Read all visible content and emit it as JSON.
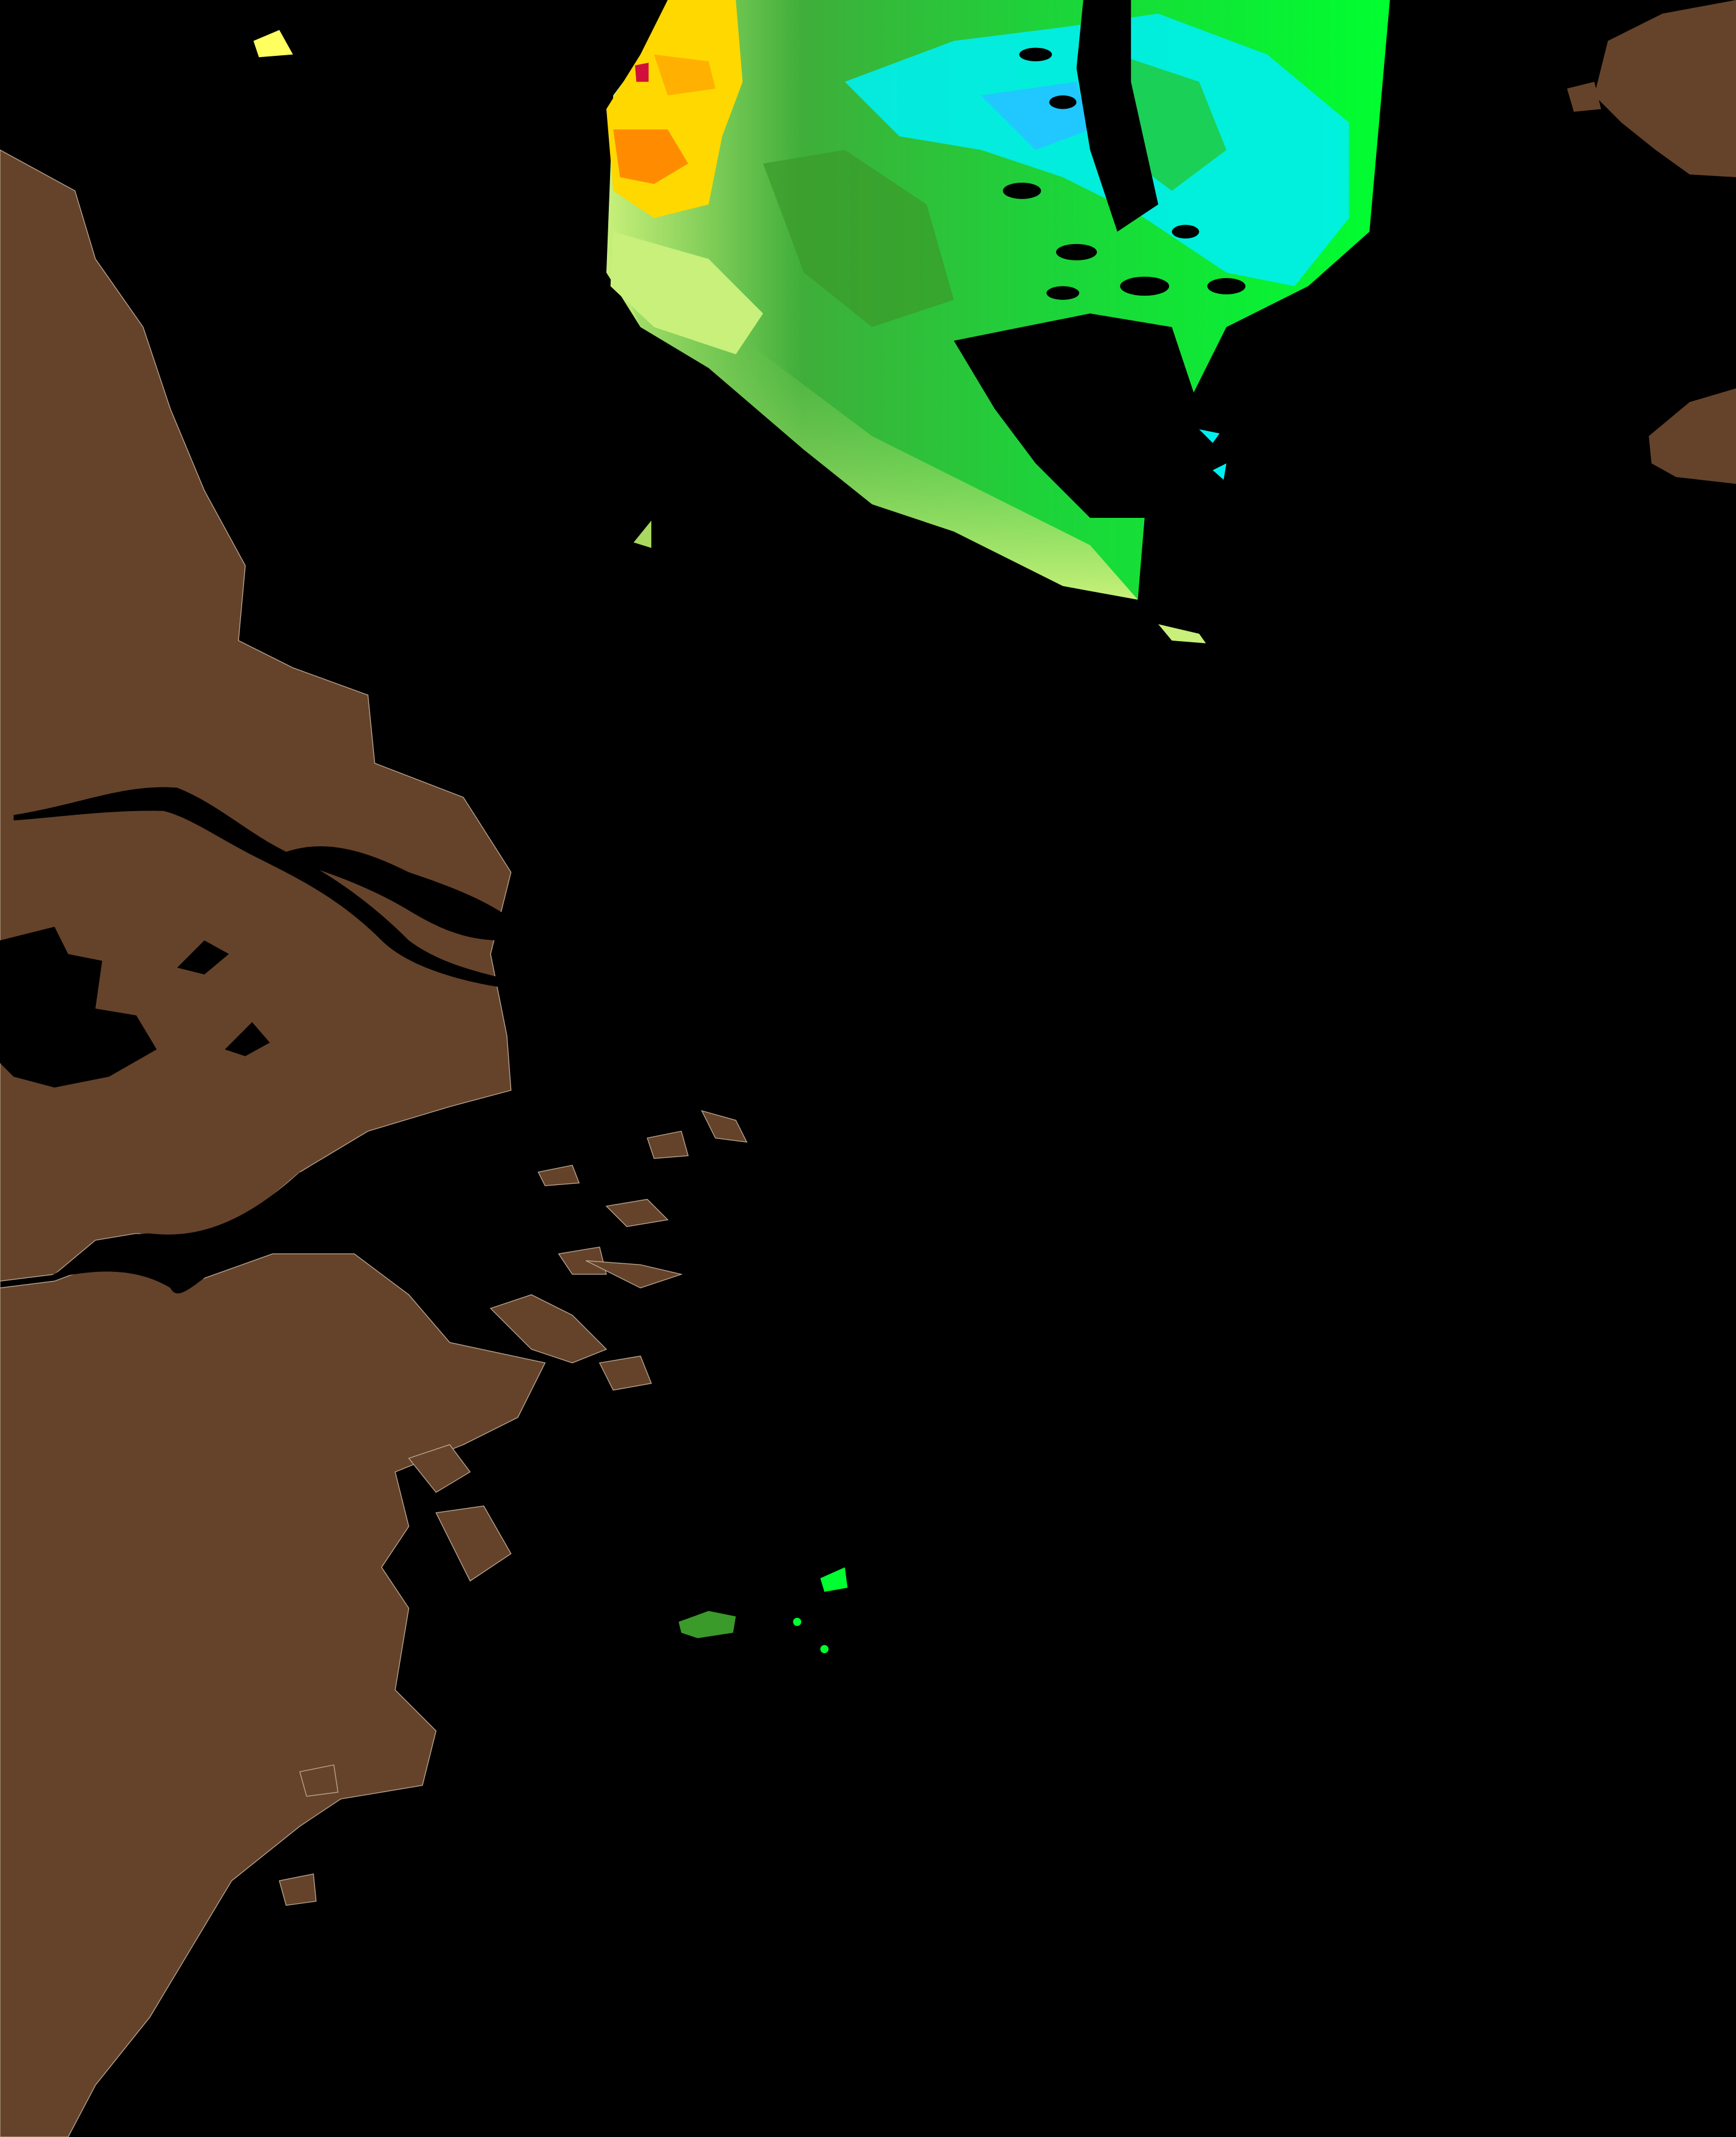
{
  "map": {
    "water_color": "#000000",
    "land_color": "#65432a",
    "coast_outline_color": "#b9a690",
    "data_palette": {
      "high": "#d0103a",
      "orange": "#ff8c00",
      "yellow": "#ffd800",
      "pale_green": "#c8f07a",
      "light_green": "#a8d860",
      "green": "#22c834",
      "bright_green": "#00ff30",
      "dark_green": "#3a9a2a",
      "cyan": "#00f0f0",
      "light_blue": "#20c8ff"
    }
  }
}
